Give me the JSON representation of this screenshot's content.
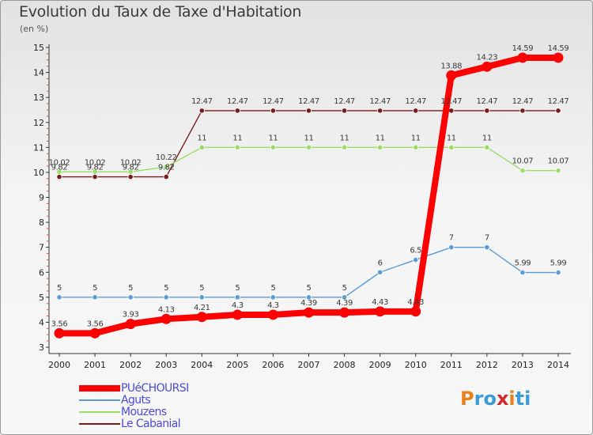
{
  "title": "Evolution du Taux de Taxe d'Habitation",
  "subtitle": "(en %)",
  "logo": {
    "letters": [
      "P",
      "r",
      "o",
      "x",
      "i",
      "t",
      "i"
    ],
    "colors": [
      "#e6811e",
      "#3a9bd8",
      "#3a9bd8",
      "#d6282c",
      "#e6811e",
      "#3a9bd8",
      "#3a9bd8"
    ]
  },
  "chart_data": {
    "type": "line",
    "title": "Evolution du Taux de Taxe d'Habitation",
    "ylabel": "(en %)",
    "xlabel": "",
    "x": [
      "2000",
      "2001",
      "2002",
      "2003",
      "2004",
      "2005",
      "2006",
      "2007",
      "2008",
      "2009",
      "2010",
      "2011",
      "2012",
      "2013",
      "2014"
    ],
    "ylim": [
      3,
      15
    ],
    "yticks": [
      "3",
      "4",
      "5",
      "6",
      "7",
      "8",
      "9",
      "10",
      "11",
      "12",
      "13",
      "14",
      "15"
    ],
    "grid": false,
    "legend_position": "bottom-left",
    "series": [
      {
        "name": "PUéCHOURSI",
        "color": "#ff0000",
        "values": [
          3.56,
          3.56,
          3.93,
          4.13,
          4.21,
          4.3,
          4.3,
          4.39,
          4.39,
          4.43,
          4.43,
          13.88,
          14.23,
          14.59,
          14.59
        ],
        "labels": [
          "3.56",
          "3.56",
          "3.93",
          "4.13",
          "4.21",
          "4.3",
          "4.3",
          "4.39",
          "4.39",
          "4.43",
          "4.43",
          "13.88",
          "14.23",
          "14.59",
          "14.59"
        ]
      },
      {
        "name": "Aguts",
        "color": "#5b9bd5",
        "values": [
          5,
          5,
          5,
          5,
          5,
          5,
          5,
          5,
          5,
          6,
          6.5,
          7,
          7,
          5.99,
          5.99
        ],
        "labels": [
          "5",
          "5",
          "5",
          "5",
          "5",
          "5",
          "5",
          "5",
          "5",
          "6",
          "6.5",
          "7",
          "7",
          "5.99",
          "5.99"
        ]
      },
      {
        "name": "Mouzens",
        "color": "#99dd66",
        "values": [
          10.02,
          10.02,
          10.02,
          10.22,
          11,
          11,
          11,
          11,
          11,
          11,
          11,
          11,
          11,
          10.07,
          10.07
        ],
        "labels": [
          "10.02",
          "10.02",
          "10.02",
          "10.22",
          "11",
          "11",
          "11",
          "11",
          "11",
          "11",
          "11",
          "11",
          "11",
          "10.07",
          "10.07"
        ]
      },
      {
        "name": "Le Cabanial",
        "color": "#7a1a1a",
        "values": [
          9.82,
          9.82,
          9.82,
          9.82,
          12.47,
          12.47,
          12.47,
          12.47,
          12.47,
          12.47,
          12.47,
          12.47,
          12.47,
          12.47,
          12.47
        ],
        "labels": [
          "9.82",
          "9.82",
          "9.82",
          "9.82",
          "12.47",
          "12.47",
          "12.47",
          "12.47",
          "12.47",
          "12.47",
          "12.47",
          "12.47",
          "12.47",
          "12.47",
          "12.47"
        ]
      }
    ]
  }
}
